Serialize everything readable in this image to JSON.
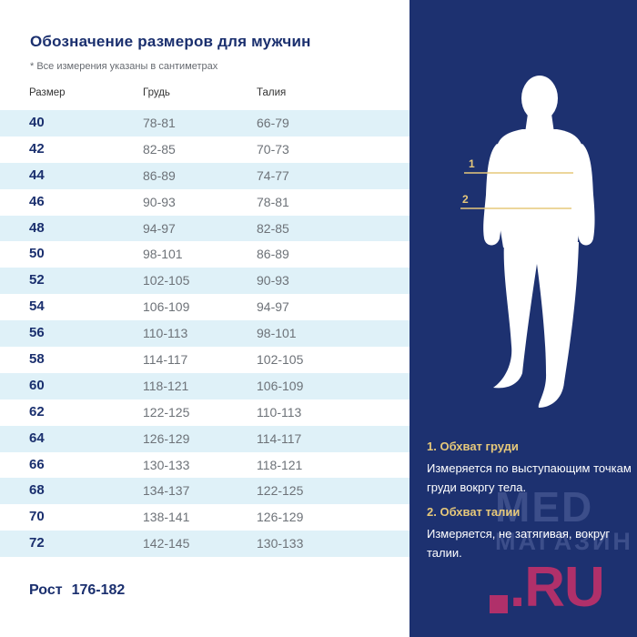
{
  "title": "Обозначение размеров для мужчин",
  "subtitle": "* Все измерения указаны в сантиметрах",
  "table": {
    "headers": {
      "size": "Размер",
      "chest": "Грудь",
      "waist": "Талия"
    },
    "rows": [
      {
        "size": "40",
        "chest": "78-81",
        "waist": "66-79"
      },
      {
        "size": "42",
        "chest": "82-85",
        "waist": "70-73"
      },
      {
        "size": "44",
        "chest": "86-89",
        "waist": "74-77"
      },
      {
        "size": "46",
        "chest": "90-93",
        "waist": "78-81"
      },
      {
        "size": "48",
        "chest": "94-97",
        "waist": "82-85"
      },
      {
        "size": "50",
        "chest": "98-101",
        "waist": "86-89"
      },
      {
        "size": "52",
        "chest": "102-105",
        "waist": "90-93"
      },
      {
        "size": "54",
        "chest": "106-109",
        "waist": "94-97"
      },
      {
        "size": "56",
        "chest": "110-113",
        "waist": "98-101"
      },
      {
        "size": "58",
        "chest": "114-117",
        "waist": "102-105"
      },
      {
        "size": "60",
        "chest": "118-121",
        "waist": "106-109"
      },
      {
        "size": "62",
        "chest": "122-125",
        "waist": "110-113"
      },
      {
        "size": "64",
        "chest": "126-129",
        "waist": "114-117"
      },
      {
        "size": "66",
        "chest": "130-133",
        "waist": "118-121"
      },
      {
        "size": "68",
        "chest": "134-137",
        "waist": "122-125"
      },
      {
        "size": "70",
        "chest": "138-141",
        "waist": "126-129"
      },
      {
        "size": "72",
        "chest": "142-145",
        "waist": "130-133"
      }
    ]
  },
  "height": {
    "label": "Рост",
    "value": "176-182"
  },
  "figure": {
    "icon": "male-body-silhouette-icon",
    "marks": {
      "one": "1",
      "two": "2"
    }
  },
  "info": {
    "chest_title": "1. Обхват груди",
    "chest_text": "Измеряется по  выступающим точкам груди вокргу тела.",
    "waist_title": "2. Обхват талии",
    "waist_text": "Измеряется, не затягивая, вокруг талии."
  },
  "watermark": {
    "line1": "MED",
    "line2": "МАГАЗИН",
    "line3": ".RU"
  },
  "colors": {
    "navy": "#1d3170",
    "title_blue": "#1a2f6e",
    "row_shade": "#dff1f8",
    "gold": "#e6c87a",
    "brand_magenta": "#b0306a"
  }
}
